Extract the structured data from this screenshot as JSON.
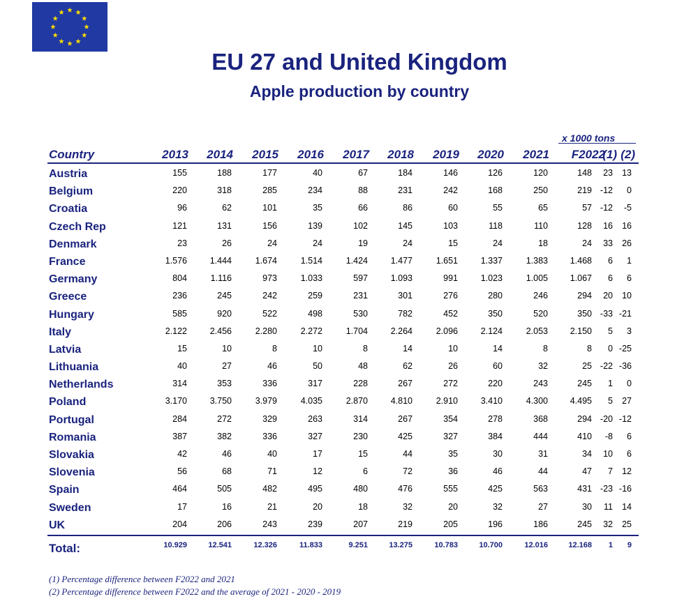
{
  "header": {
    "title": "EU 27 and United Kingdom",
    "subtitle": "Apple production by country",
    "unit_note": "x 1000 tons"
  },
  "colors": {
    "navy": "#1a237e",
    "eu_blue": "#2039a3",
    "eu_star": "#ffdd00"
  },
  "logo": {
    "icon": "eu-flag-icon"
  },
  "table": {
    "columns": [
      "Country",
      "2013",
      "2014",
      "2015",
      "2016",
      "2017",
      "2018",
      "2019",
      "2020",
      "2021",
      "F2022",
      "(1)",
      "(2)"
    ],
    "rows": [
      {
        "country": "Austria",
        "values": [
          "155",
          "188",
          "177",
          "40",
          "67",
          "184",
          "146",
          "126",
          "120",
          "148",
          "23",
          "13"
        ]
      },
      {
        "country": "Belgium",
        "values": [
          "220",
          "318",
          "285",
          "234",
          "88",
          "231",
          "242",
          "168",
          "250",
          "219",
          "-12",
          "0"
        ]
      },
      {
        "country": "Croatia",
        "values": [
          "96",
          "62",
          "101",
          "35",
          "66",
          "86",
          "60",
          "55",
          "65",
          "57",
          "-12",
          "-5"
        ]
      },
      {
        "country": "Czech Rep",
        "values": [
          "121",
          "131",
          "156",
          "139",
          "102",
          "145",
          "103",
          "118",
          "110",
          "128",
          "16",
          "16"
        ]
      },
      {
        "country": "Denmark",
        "values": [
          "23",
          "26",
          "24",
          "24",
          "19",
          "24",
          "15",
          "24",
          "18",
          "24",
          "33",
          "26"
        ]
      },
      {
        "country": "France",
        "values": [
          "1.576",
          "1.444",
          "1.674",
          "1.514",
          "1.424",
          "1.477",
          "1.651",
          "1.337",
          "1.383",
          "1.468",
          "6",
          "1"
        ]
      },
      {
        "country": "Germany",
        "values": [
          "804",
          "1.116",
          "973",
          "1.033",
          "597",
          "1.093",
          "991",
          "1.023",
          "1.005",
          "1.067",
          "6",
          "6"
        ]
      },
      {
        "country": "Greece",
        "values": [
          "236",
          "245",
          "242",
          "259",
          "231",
          "301",
          "276",
          "280",
          "246",
          "294",
          "20",
          "10"
        ]
      },
      {
        "country": "Hungary",
        "values": [
          "585",
          "920",
          "522",
          "498",
          "530",
          "782",
          "452",
          "350",
          "520",
          "350",
          "-33",
          "-21"
        ]
      },
      {
        "country": "Italy",
        "values": [
          "2.122",
          "2.456",
          "2.280",
          "2.272",
          "1.704",
          "2.264",
          "2.096",
          "2.124",
          "2.053",
          "2.150",
          "5",
          "3"
        ]
      },
      {
        "country": "Latvia",
        "values": [
          "15",
          "10",
          "8",
          "10",
          "8",
          "14",
          "10",
          "14",
          "8",
          "8",
          "0",
          "-25"
        ]
      },
      {
        "country": "Lithuania",
        "values": [
          "40",
          "27",
          "46",
          "50",
          "48",
          "62",
          "26",
          "60",
          "32",
          "25",
          "-22",
          "-36"
        ]
      },
      {
        "country": "Netherlands",
        "values": [
          "314",
          "353",
          "336",
          "317",
          "228",
          "267",
          "272",
          "220",
          "243",
          "245",
          "1",
          "0"
        ]
      },
      {
        "country": "Poland",
        "values": [
          "3.170",
          "3.750",
          "3.979",
          "4.035",
          "2.870",
          "4.810",
          "2.910",
          "3.410",
          "4.300",
          "4.495",
          "5",
          "27"
        ]
      },
      {
        "country": "Portugal",
        "values": [
          "284",
          "272",
          "329",
          "263",
          "314",
          "267",
          "354",
          "278",
          "368",
          "294",
          "-20",
          "-12"
        ]
      },
      {
        "country": "Romania",
        "values": [
          "387",
          "382",
          "336",
          "327",
          "230",
          "425",
          "327",
          "384",
          "444",
          "410",
          "-8",
          "6"
        ]
      },
      {
        "country": "Slovakia",
        "values": [
          "42",
          "46",
          "40",
          "17",
          "15",
          "44",
          "35",
          "30",
          "31",
          "34",
          "10",
          "6"
        ]
      },
      {
        "country": "Slovenia",
        "values": [
          "56",
          "68",
          "71",
          "12",
          "6",
          "72",
          "36",
          "46",
          "44",
          "47",
          "7",
          "12"
        ]
      },
      {
        "country": "Spain",
        "values": [
          "464",
          "505",
          "482",
          "495",
          "480",
          "476",
          "555",
          "425",
          "563",
          "431",
          "-23",
          "-16"
        ]
      },
      {
        "country": "Sweden",
        "values": [
          "17",
          "16",
          "21",
          "20",
          "18",
          "32",
          "20",
          "32",
          "27",
          "30",
          "11",
          "14"
        ]
      },
      {
        "country": "UK",
        "values": [
          "204",
          "206",
          "243",
          "239",
          "207",
          "219",
          "205",
          "196",
          "186",
          "245",
          "32",
          "25"
        ]
      }
    ],
    "total": {
      "label": "Total:",
      "values": [
        "10.929",
        "12.541",
        "12.326",
        "11.833",
        "9.251",
        "13.275",
        "10.783",
        "10.700",
        "12.016",
        "12.168",
        "1",
        "9"
      ]
    }
  },
  "footnotes": [
    "(1) Percentage difference between F2022 and 2021",
    "(2) Percentage difference between F2022 and the average of 2021 - 2020 - 2019"
  ]
}
